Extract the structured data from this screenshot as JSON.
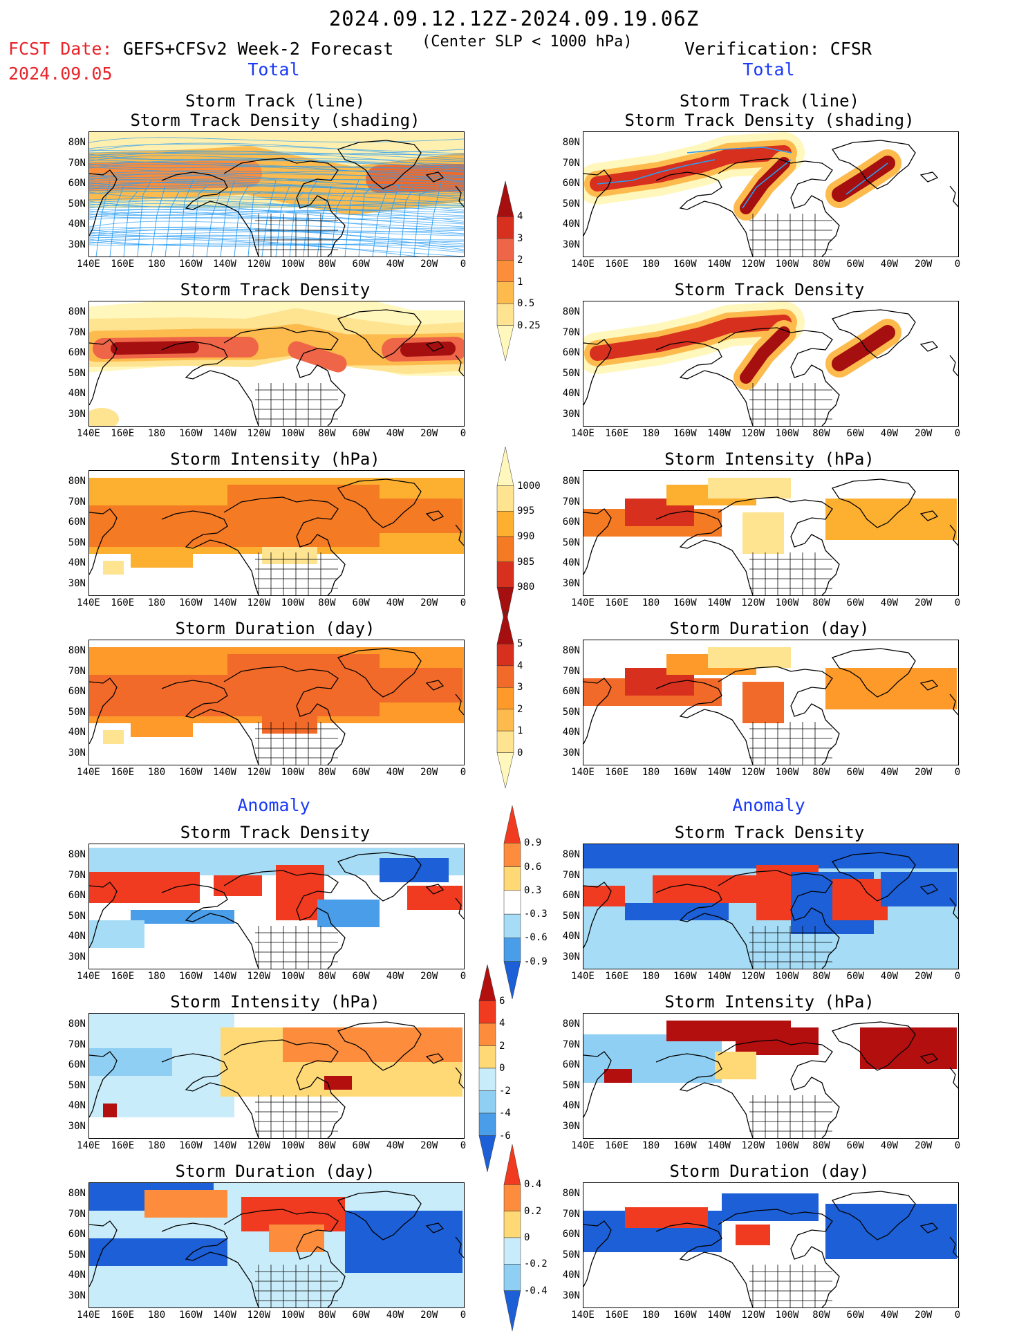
{
  "header": {
    "title": "2024.09.12.12Z-2024.09.19.06Z",
    "fcst_label": "FCST Date:",
    "fcst_model": "GEFS+CFSv2 Week-2 Forecast",
    "fcst_date": "2024.09.05",
    "center_slp": "(Center SLP < 1000 hPa)",
    "verification": "Verification: CFSR"
  },
  "sections": {
    "total": "Total",
    "anomaly": "Anomaly"
  },
  "panel_titles": {
    "track_line": "Storm Track (line)",
    "track_density_shading": "Storm Track Density (shading)",
    "track_density": "Storm Track Density",
    "intensity": "Storm Intensity (hPa)",
    "duration": "Storm Duration (day)"
  },
  "axes": {
    "lat_labels": [
      "80N",
      "70N",
      "60N",
      "50N",
      "40N",
      "30N"
    ],
    "lon_labels": [
      "140E",
      "160E",
      "180",
      "160W",
      "140W",
      "120W",
      "100W",
      "80W",
      "60W",
      "40W",
      "20W",
      "0"
    ]
  },
  "colorbars": {
    "density": {
      "labels": [
        "4",
        "3",
        "2",
        "1",
        "0.5",
        "0.25"
      ],
      "colors": [
        "#a50f0f",
        "#d7301f",
        "#ef6548",
        "#fc8d3b",
        "#fdbb4d",
        "#fee391",
        "#fff7bc"
      ]
    },
    "intensity": {
      "labels": [
        "1000",
        "995",
        "990",
        "985",
        "980"
      ],
      "colors": [
        "#fff7bc",
        "#fee391",
        "#fdb02f",
        "#f47a24",
        "#d7301f",
        "#a50f0f"
      ]
    },
    "duration": {
      "labels": [
        "5",
        "4",
        "3",
        "2",
        "1",
        "0"
      ],
      "colors": [
        "#a50f0f",
        "#d7301f",
        "#f26a2a",
        "#fd9a2a",
        "#fdbb4d",
        "#fee391",
        "#fff7bc"
      ]
    },
    "anom_density": {
      "labels": [
        "0.9",
        "0.6",
        "0.3",
        "-0.3",
        "-0.6",
        "-0.9"
      ],
      "colors": [
        "#f03b20",
        "#fd8d3c",
        "#fed976",
        "#ffffff",
        "#a6dcf5",
        "#4a9de8",
        "#1c5fd6"
      ]
    },
    "anom_intensity": {
      "labels": [
        "6",
        "4",
        "2",
        "0",
        "-2",
        "-4",
        "-6"
      ],
      "colors": [
        "#b40f0f",
        "#f03b20",
        "#fd8d3c",
        "#fed976",
        "#c9ecfa",
        "#8fcff3",
        "#4a9de8",
        "#1c5fd6"
      ]
    },
    "anom_duration": {
      "labels": [
        "0.4",
        "0.2",
        "0",
        "-0.2",
        "-0.4"
      ],
      "colors": [
        "#f03b20",
        "#fd8d3c",
        "#fed976",
        "#c9ecfa",
        "#8fcff3",
        "#1c5fd6"
      ]
    }
  },
  "colors": {
    "accent_red": "#e8242a",
    "section_blue": "#1a3af5",
    "track_line": "#2a9df4"
  }
}
